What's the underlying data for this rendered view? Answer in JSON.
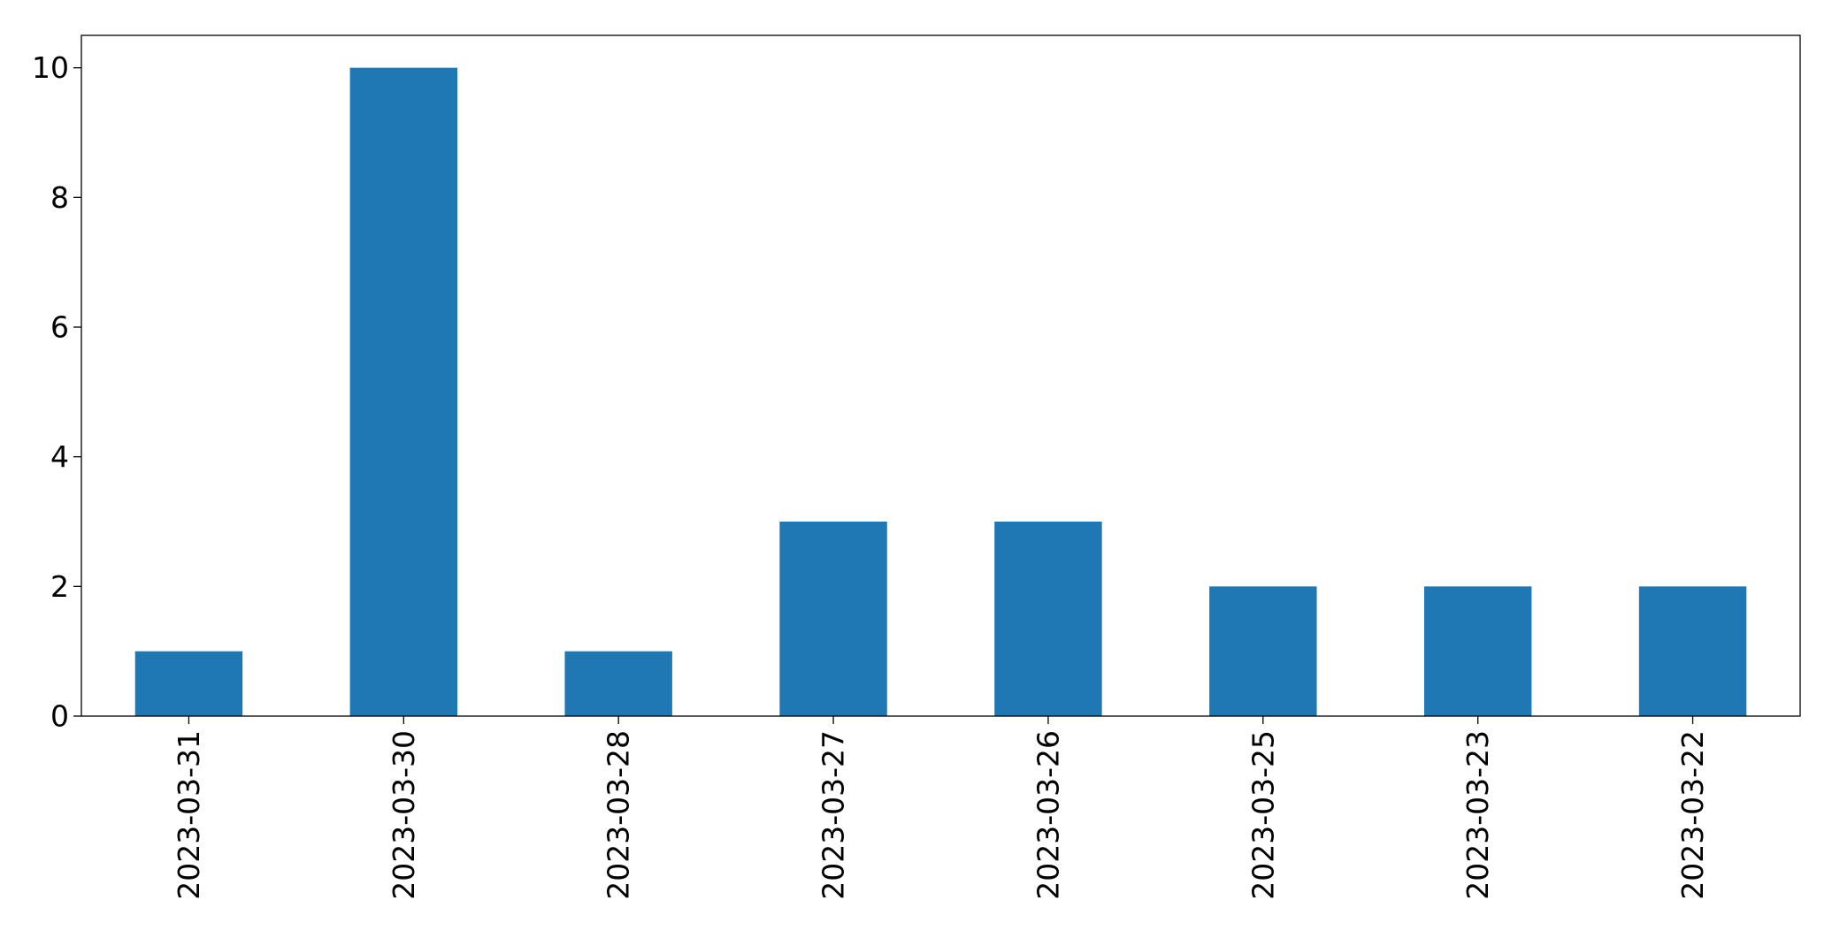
{
  "chart_data": {
    "type": "bar",
    "categories": [
      "2023-03-31",
      "2023-03-30",
      "2023-03-28",
      "2023-03-27",
      "2023-03-26",
      "2023-03-25",
      "2023-03-23",
      "2023-03-22"
    ],
    "values": [
      1,
      10,
      1,
      3,
      3,
      2,
      2,
      2
    ],
    "ylim": [
      0,
      10.5
    ],
    "yticks": [
      0,
      2,
      4,
      6,
      8,
      10
    ],
    "grid": false,
    "legend": "none",
    "bar_color": "#1f77b4"
  }
}
